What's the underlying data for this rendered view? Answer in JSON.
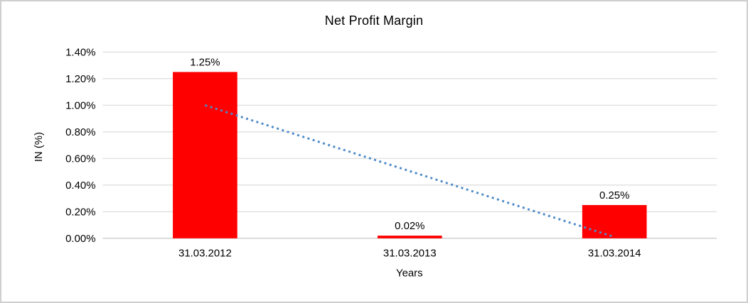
{
  "chart_data": {
    "type": "bar",
    "title": "Net Profit Margin",
    "categories": [
      "31.03.2012",
      "31.03.2013",
      "31.03.2014"
    ],
    "values": [
      1.25,
      0.02,
      0.25
    ],
    "value_labels": [
      "1.25%",
      "0.02%",
      "0.25%"
    ],
    "xlabel": "Years",
    "ylabel": "IN (%)",
    "ylim": [
      0,
      1.4
    ],
    "ytick_labels": [
      "0.00%",
      "0.20%",
      "0.40%",
      "0.60%",
      "0.80%",
      "1.00%",
      "1.20%",
      "1.40%"
    ],
    "grid": true,
    "legend": "none",
    "trendline": {
      "style": "dotted-linear",
      "start_value": 1.0,
      "end_value": 0.01
    },
    "colors": {
      "bar": "#FF0000",
      "trendline": "#4E8BC8",
      "gridline": "#D9D9D9",
      "axis_line": "#C0C0C0",
      "text": "#000000"
    }
  }
}
